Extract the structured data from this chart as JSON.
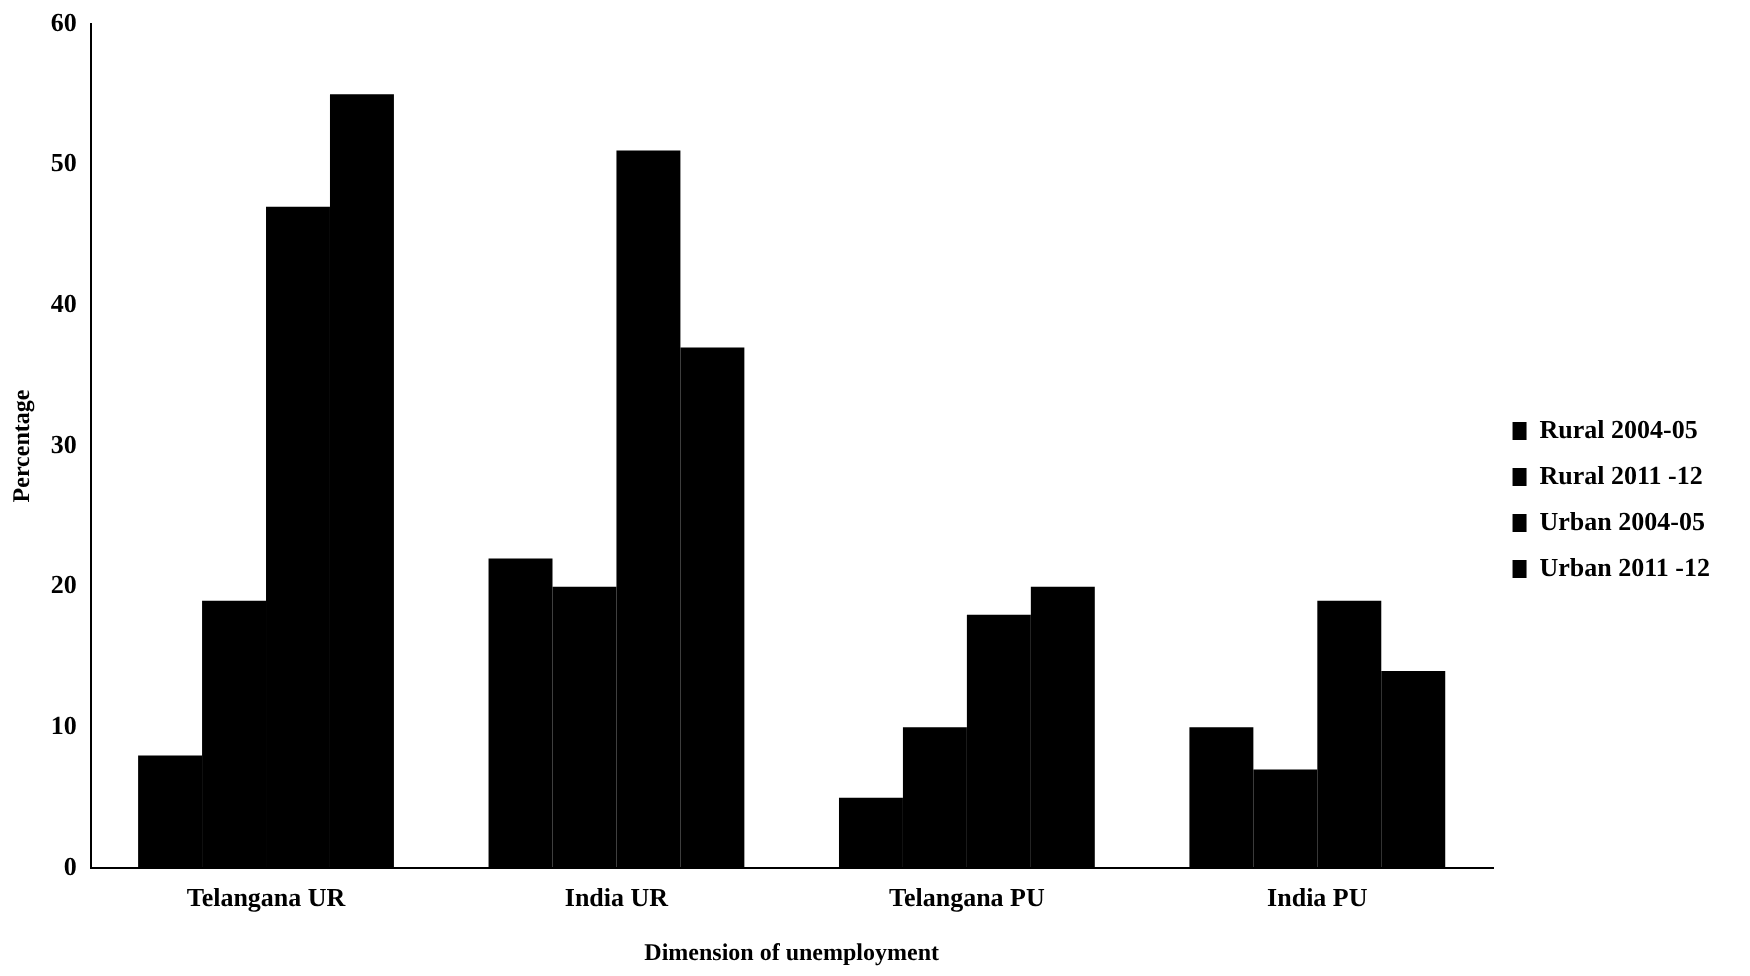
{
  "chart_data": {
    "type": "bar",
    "xlabel": "Dimension of unemployment",
    "ylabel": "Percentage",
    "categories": [
      "Telangana UR",
      "India UR",
      "Telangana PU",
      "India PU"
    ],
    "series": [
      {
        "name": "Rural 2004-05",
        "color": "#000000",
        "values": [
          8,
          22,
          5,
          10
        ]
      },
      {
        "name": "Rural 2011 -12",
        "color": "#000000",
        "values": [
          19,
          20,
          10,
          7
        ]
      },
      {
        "name": "Urban 2004-05",
        "color": "#000000",
        "values": [
          47,
          51,
          18,
          19
        ]
      },
      {
        "name": "Urban 2011 -12",
        "color": "#000000",
        "values": [
          55,
          37,
          20,
          14
        ]
      }
    ],
    "ylim": [
      0,
      60
    ],
    "yticks": [
      0,
      10,
      20,
      30,
      40,
      50,
      60
    ],
    "grid": false,
    "legend": "right"
  }
}
